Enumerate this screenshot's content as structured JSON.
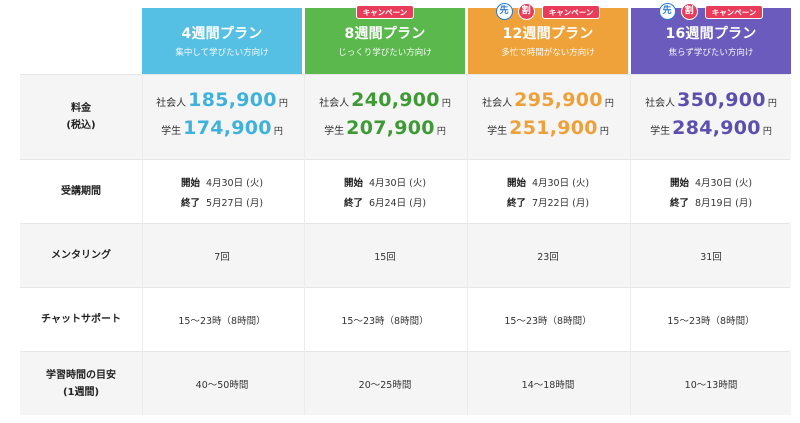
{
  "plans": [
    {
      "name": "4週間プラン",
      "desc": "集中して学びたい方向け",
      "campaign": "",
      "saki": "",
      "wari": "",
      "price_worker": "185,900",
      "price_student": "174,900",
      "start": "4月30日 (火)",
      "end": "5月27日 (月)",
      "mentoring": "7回",
      "chat": "15〜23時（8時間）",
      "study_hours": "40〜50時間",
      "color": "#55bfe4"
    },
    {
      "name": "8週間プラン",
      "desc": "じっくり学びたい方向け",
      "campaign": "キャンペーン",
      "saki": "",
      "wari": "",
      "price_worker": "240,900",
      "price_student": "207,900",
      "start": "4月30日 (火)",
      "end": "6月24日 (月)",
      "mentoring": "15回",
      "chat": "15〜23時（8時間）",
      "study_hours": "20〜25時間",
      "color": "#5ab84d"
    },
    {
      "name": "12週間プラン",
      "desc": "多忙で時間がない方向け",
      "campaign": "キャンペーン",
      "saki": "先",
      "wari": "割",
      "price_worker": "295,900",
      "price_student": "251,900",
      "start": "4月30日 (火)",
      "end": "7月22日 (月)",
      "mentoring": "23回",
      "chat": "15〜23時（8時間）",
      "study_hours": "14〜18時間",
      "color": "#efa23a"
    },
    {
      "name": "16週間プラン",
      "desc": "焦らず学びたい方向け",
      "campaign": "キャンペーン",
      "saki": "先",
      "wari": "割",
      "price_worker": "350,900",
      "price_student": "284,900",
      "start": "4月30日 (火)",
      "end": "8月19日 (月)",
      "mentoring": "31回",
      "chat": "15〜23時（8時間）",
      "study_hours": "10〜13時間",
      "color": "#6a5bbd"
    }
  ],
  "labels": {
    "fee": "料金",
    "fee_tax": "(税込)",
    "period": "受講期間",
    "mentoring": "メンタリング",
    "chat": "チャットサポート",
    "study": "学習時間の目安",
    "study_sub": "(1週間)",
    "worker": "社会人",
    "student": "学生",
    "yen": "円",
    "start": "開始",
    "end": "終了"
  }
}
